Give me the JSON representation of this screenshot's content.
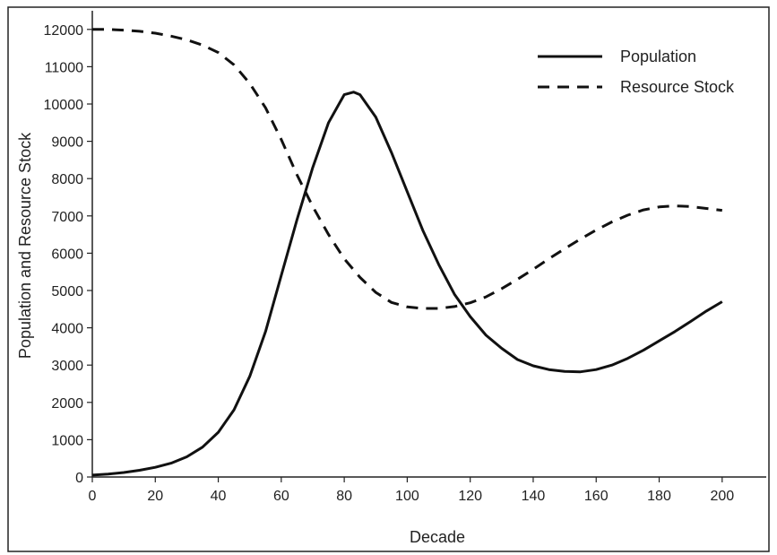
{
  "chart_data": {
    "type": "line",
    "title": "",
    "xlabel": "Decade",
    "ylabel": "Population and Resource Stock",
    "xlim": [
      0,
      214
    ],
    "ylim": [
      0,
      12500
    ],
    "xticks": [
      0,
      20,
      40,
      60,
      80,
      100,
      120,
      140,
      160,
      180,
      200
    ],
    "yticks": [
      0,
      1000,
      2000,
      3000,
      4000,
      5000,
      6000,
      7000,
      8000,
      9000,
      10000,
      11000,
      12000
    ],
    "grid": false,
    "legend_position": "top-right",
    "x": [
      0,
      5,
      10,
      15,
      20,
      25,
      30,
      35,
      40,
      45,
      50,
      55,
      60,
      65,
      70,
      75,
      80,
      83,
      85,
      90,
      95,
      100,
      105,
      110,
      115,
      120,
      125,
      130,
      135,
      140,
      145,
      150,
      155,
      160,
      165,
      170,
      175,
      180,
      185,
      190,
      195,
      200
    ],
    "series": [
      {
        "name": "Population",
        "style": "solid",
        "values": [
          50,
          80,
          120,
          180,
          260,
          370,
          540,
          800,
          1200,
          1800,
          2700,
          3900,
          5400,
          6900,
          8300,
          9500,
          10250,
          10320,
          10250,
          9650,
          8700,
          7650,
          6600,
          5700,
          4900,
          4300,
          3800,
          3450,
          3150,
          2980,
          2880,
          2830,
          2820,
          2880,
          3000,
          3180,
          3400,
          3650,
          3900,
          4170,
          4450,
          4700
        ]
      },
      {
        "name": "Resource Stock",
        "style": "dashed",
        "values": [
          12000,
          12000,
          11980,
          11950,
          11900,
          11820,
          11720,
          11580,
          11380,
          11050,
          10550,
          9900,
          9050,
          8100,
          7250,
          6500,
          5850,
          5550,
          5350,
          4950,
          4680,
          4560,
          4520,
          4520,
          4570,
          4670,
          4830,
          5050,
          5300,
          5570,
          5850,
          6120,
          6380,
          6620,
          6840,
          7020,
          7160,
          7240,
          7270,
          7250,
          7200,
          7150
        ]
      }
    ]
  }
}
